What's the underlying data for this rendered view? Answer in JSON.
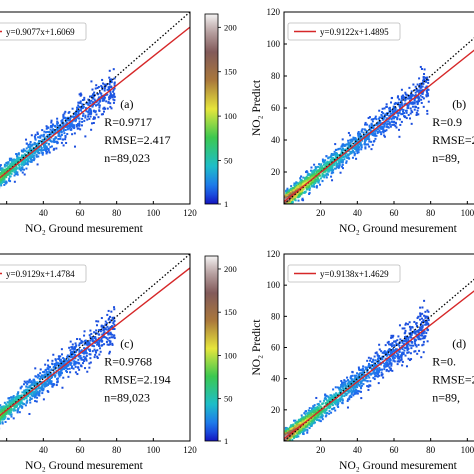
{
  "figure": {
    "panels": [
      {
        "id": "a",
        "cbar": "left"
      },
      {
        "id": "b",
        "cbar": "none"
      },
      {
        "id": "c",
        "cbar": "left"
      },
      {
        "id": "d",
        "cbar": "none"
      }
    ]
  },
  "chart_data": [
    {
      "type": "scatter",
      "panel_label": "(a)",
      "legend_text": "y=0.9077x+1.6069",
      "stats": [
        "R=0.9717",
        "RMSE=2.417",
        "n=89,023"
      ],
      "xlabel": "NO₂ Ground mesurement",
      "ylabel": "",
      "xlim": [
        0,
        120
      ],
      "ylim": [
        0,
        120
      ],
      "xticks": [
        0,
        20,
        40,
        60,
        80,
        100,
        120
      ],
      "xtick_labels": [
        "",
        "",
        "40",
        "60",
        "80",
        "100",
        "120"
      ],
      "yticks": [],
      "ytick_labels": [],
      "fit": {
        "slope": 0.9077,
        "intercept": 1.6069,
        "color": "#d62728"
      },
      "one_to_one": true,
      "density_points": 89023,
      "colorbar": {
        "ticks": [
          1,
          50,
          100,
          150,
          200
        ],
        "tick_labels": [
          "1",
          "50",
          "100",
          "150",
          "200"
        ],
        "colormap": "terrain-like (blue-green-yellow-brown-white)"
      }
    },
    {
      "type": "scatter",
      "panel_label": "(b)",
      "legend_text": "y=0.9122x+1.4895",
      "stats": [
        "R=0.9",
        "RMSE=2.",
        "n=89,"
      ],
      "xlabel": "NO₂ Ground mesurement",
      "ylabel": "NO₂ Predict",
      "xlim": [
        0,
        120
      ],
      "ylim": [
        0,
        120
      ],
      "xticks": [
        20,
        40,
        60,
        80,
        100,
        120
      ],
      "xtick_labels": [
        "20",
        "40",
        "60",
        "80",
        "100",
        "120"
      ],
      "yticks": [
        20,
        40,
        60,
        80,
        100,
        120
      ],
      "ytick_labels": [
        "20",
        "40",
        "60",
        "80",
        "100",
        "120"
      ],
      "fit": {
        "slope": 0.9122,
        "intercept": 1.4895,
        "color": "#d62728"
      },
      "one_to_one": true,
      "density_points": 89023
    },
    {
      "type": "scatter",
      "panel_label": "(c)",
      "legend_text": "y=0.9129x+1.4784",
      "stats": [
        "R=0.9768",
        "RMSE=2.194",
        "n=89,023"
      ],
      "xlabel": "NO₂ Ground mesurement",
      "ylabel": "",
      "xlim": [
        0,
        120
      ],
      "ylim": [
        0,
        120
      ],
      "xticks": [
        0,
        20,
        40,
        60,
        80,
        100,
        120
      ],
      "xtick_labels": [
        "",
        "",
        "40",
        "60",
        "80",
        "100",
        "120"
      ],
      "yticks": [],
      "ytick_labels": [],
      "fit": {
        "slope": 0.9129,
        "intercept": 1.4784,
        "color": "#d62728"
      },
      "one_to_one": true,
      "density_points": 89023,
      "colorbar": {
        "ticks": [
          1,
          50,
          100,
          150,
          200
        ],
        "tick_labels": [
          "1",
          "50",
          "100",
          "150",
          "200"
        ],
        "colormap": "terrain-like (blue-green-yellow-brown-white)"
      }
    },
    {
      "type": "scatter",
      "panel_label": "(d)",
      "legend_text": "y=0.9138x+1.4629",
      "stats": [
        "R=0.",
        "RMSE=2.",
        "n=89,"
      ],
      "xlabel": "NO₂ Ground mesurement",
      "ylabel": "NO₂ Predict",
      "xlim": [
        0,
        120
      ],
      "ylim": [
        0,
        120
      ],
      "xticks": [
        20,
        40,
        60,
        80,
        100,
        120
      ],
      "xtick_labels": [
        "20",
        "40",
        "60",
        "80",
        "100",
        "120"
      ],
      "yticks": [
        20,
        40,
        60,
        80,
        100,
        120
      ],
      "ytick_labels": [
        "20",
        "40",
        "60",
        "80",
        "100",
        "120"
      ],
      "fit": {
        "slope": 0.9138,
        "intercept": 1.4629,
        "color": "#d62728"
      },
      "one_to_one": true,
      "density_points": 89023
    }
  ]
}
